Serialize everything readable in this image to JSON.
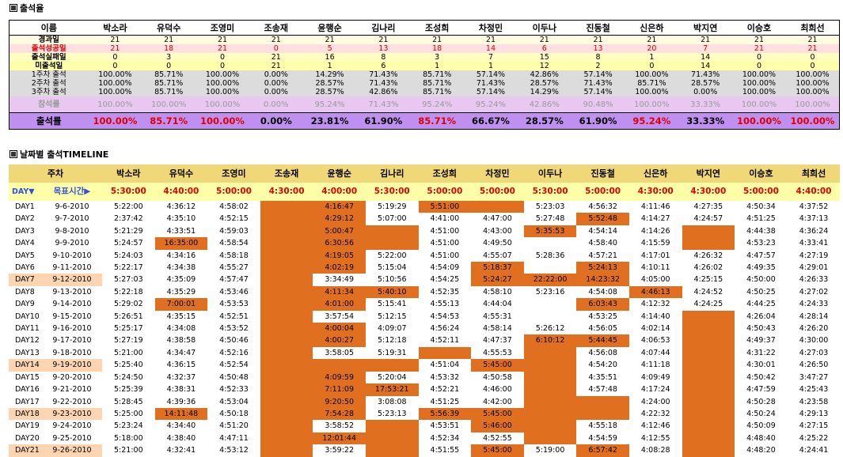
{
  "section1_title": "출석율",
  "section2_title": "날짜별 출석TIMELINE",
  "names": [
    "박소라",
    "유덕수",
    "조영미",
    "조송재",
    "윤행순",
    "김나리",
    "조성희",
    "차정민",
    "이두나",
    "진동철",
    "신은하",
    "박지연",
    "이승호",
    "최희선"
  ],
  "summary": {
    "name_header": "이름",
    "rows": [
      {
        "label": "경과일",
        "cls": "r-elapsed",
        "values": [
          "21",
          "21",
          "21",
          "21",
          "21",
          "21",
          "21",
          "21",
          "21",
          "21",
          "21",
          "21",
          "21",
          "21"
        ]
      },
      {
        "label": "출석성공일",
        "cls": "r-success",
        "values": [
          "21",
          "18",
          "21",
          "0",
          "5",
          "13",
          "18",
          "14",
          "6",
          "13",
          "20",
          "7",
          "21",
          "21"
        ]
      },
      {
        "label": "출석실패일",
        "cls": "r-fail",
        "values": [
          "0",
          "3",
          "0",
          "21",
          "16",
          "8",
          "3",
          "7",
          "15",
          "8",
          "1",
          "14",
          "0",
          "0"
        ]
      },
      {
        "label": "미출석일",
        "cls": "r-none",
        "values": [
          "0",
          "0",
          "0",
          "21",
          "1",
          "6",
          "1",
          "1",
          "12",
          "2",
          "0",
          "14",
          "0",
          "0"
        ]
      },
      {
        "label": "1주차 출석",
        "cls": "r-week",
        "values": [
          "100.00%",
          "85.71%",
          "100.00%",
          "0.00%",
          "14.29%",
          "71.43%",
          "85.71%",
          "57.14%",
          "42.86%",
          "57.14%",
          "100.00%",
          "71.43%",
          "100.00%",
          "100.00%"
        ]
      },
      {
        "label": "2주차 출석",
        "cls": "r-week",
        "values": [
          "100.00%",
          "85.71%",
          "100.00%",
          "0.00%",
          "28.57%",
          "71.43%",
          "85.71%",
          "71.43%",
          "28.57%",
          "71.43%",
          "85.71%",
          "28.57%",
          "100.00%",
          "100.00%"
        ]
      },
      {
        "label": "3주차 출석",
        "cls": "r-week",
        "values": [
          "100.00%",
          "85.71%",
          "100.00%",
          "0.00%",
          "28.57%",
          "42.86%",
          "85.71%",
          "57.14%",
          "14.29%",
          "57.14%",
          "100.00%",
          "0.00%",
          "100.00%",
          "100.00%"
        ]
      },
      {
        "label": "참석률",
        "cls": "r-part",
        "values": [
          "100.00%",
          "100.00%",
          "100.00%",
          "0.00%",
          "95.24%",
          "71.43%",
          "95.24%",
          "95.24%",
          "42.86%",
          "90.48%",
          "100.00%",
          "33.33%",
          "100.00%",
          "100.00%"
        ]
      }
    ],
    "rate": {
      "label": "출석률",
      "values": [
        "100.00%",
        "85.71%",
        "100.00%",
        "0.00%",
        "23.81%",
        "61.90%",
        "85.71%",
        "66.67%",
        "28.57%",
        "61.90%",
        "95.24%",
        "33.33%",
        "100.00%",
        "100.00%"
      ],
      "red": [
        true,
        true,
        true,
        false,
        false,
        false,
        true,
        false,
        false,
        false,
        true,
        false,
        true,
        true
      ]
    }
  },
  "timeline": {
    "week_header": "주차",
    "day_header": "DAY▼",
    "goal_header": "목표시간▶",
    "goal_times": [
      "5:30:00",
      "4:40:00",
      "5:00:00",
      "4:30:00",
      "4:00:00",
      "5:30:00",
      "5:00:00",
      "5:00:00",
      "5:30:00",
      "5:00:00",
      "4:30:00",
      "4:30:00",
      "5:00:00",
      "4:40:00"
    ],
    "days": [
      {
        "day": "DAY1",
        "date": "9-6-2010",
        "hl": false,
        "t": [
          "5:22:00",
          "4:36:12",
          "4:58:02",
          "",
          "4:16:47",
          "5:19:29",
          "5:51:00",
          "",
          "5:23:03",
          "4:56:32",
          "4:11:46",
          "4:27:35",
          "4:50:34",
          "4:37:52"
        ],
        "late": [
          3,
          4,
          6,
          7
        ]
      },
      {
        "day": "DAY2",
        "date": "9-7-2010",
        "hl": false,
        "t": [
          "2:37:42",
          "4:35:10",
          "4:52:15",
          "",
          "4:29:12",
          "5:07:00",
          "4:41:00",
          "4:47:00",
          "5:27:48",
          "5:52:48",
          "4:14:27",
          "4:24:57",
          "4:51:25",
          "4:37:13"
        ],
        "late": [
          3,
          4,
          9
        ]
      },
      {
        "day": "DAY3",
        "date": "9-8-2010",
        "hl": false,
        "t": [
          "5:21:29",
          "4:33:51",
          "4:59:03",
          "",
          "5:00:47",
          "",
          "4:51:00",
          "4:43:00",
          "5:35:53",
          "4:54:14",
          "4:14:26",
          "",
          "4:44:38",
          "4:36:24"
        ],
        "late": [
          3,
          4,
          5,
          8,
          11
        ]
      },
      {
        "day": "DAY4",
        "date": "9-9-2010",
        "hl": false,
        "t": [
          "5:24:57",
          "16:35:00",
          "4:58:54",
          "",
          "6:30:56",
          "",
          "4:51:00",
          "4:49:50",
          "",
          "4:58:40",
          "4:15:59",
          "",
          "4:53:23",
          "4:33:41"
        ],
        "late": [
          1,
          3,
          4,
          5,
          11
        ]
      },
      {
        "day": "DAY5",
        "date": "9-10-2010",
        "hl": false,
        "t": [
          "5:24:03",
          "4:34:16",
          "4:58:18",
          "",
          "4:19:05",
          "5:22:00",
          "4:51:00",
          "4:55:07",
          "5:28:36",
          "4:57:21",
          "4:17:01",
          "4:26:32",
          "4:47:57",
          "4:27:19"
        ],
        "late": [
          3,
          4
        ]
      },
      {
        "day": "DAY6",
        "date": "9-11-2010",
        "hl": false,
        "t": [
          "5:22:17",
          "4:34:38",
          "4:55:27",
          "",
          "4:02:19",
          "5:15:04",
          "4:54:09",
          "5:18:37",
          "",
          "5:24:13",
          "4:10:11",
          "4:26:02",
          "4:49:35",
          "4:29:01"
        ],
        "late": [
          3,
          4,
          7,
          9
        ]
      },
      {
        "day": "DAY7",
        "date": "9-12-2010",
        "hl": true,
        "t": [
          "5:27:03",
          "4:35:09",
          "4:57:47",
          "",
          "3:34:49",
          "5:10:56",
          "4:54:25",
          "5:24:27",
          "22:22:00",
          "14:23:32",
          "4:05:00",
          "4:25:15",
          "4:50:00",
          "4:26:33"
        ],
        "late": [
          3,
          7,
          8,
          9
        ]
      },
      {
        "day": "DAY8",
        "date": "9-13-2010",
        "hl": false,
        "t": [
          "5:22:18",
          "4:35:29",
          "4:53:46",
          "",
          "4:11:34",
          "5:40:10",
          "4:52:35",
          "4:58:10",
          "5:23:16",
          "4:54:08",
          "4:46:13",
          "4:24:52",
          "4:50:25",
          "4:27:02"
        ],
        "late": [
          3,
          4,
          5,
          10
        ]
      },
      {
        "day": "DAY9",
        "date": "9-14-2010",
        "hl": false,
        "t": [
          "5:29:02",
          "7:00:01",
          "4:53:53",
          "",
          "4:01:00",
          "5:15:41",
          "4:55:13",
          "4:44:04",
          "",
          "6:03:43",
          "4:12:32",
          "4:24:25",
          "4:44:25",
          "4:24:33"
        ],
        "late": [
          1,
          3,
          4,
          9
        ]
      },
      {
        "day": "DAY10",
        "date": "9-15-2010",
        "hl": false,
        "t": [
          "5:26:51",
          "4:35:15",
          "4:52:51",
          "",
          "3:57:54",
          "5:12:15",
          "4:54:53",
          "4:55:31",
          "",
          "4:53:25",
          "4:14:40",
          "",
          "4:26:04",
          "4:28:14"
        ],
        "late": [
          3,
          11
        ]
      },
      {
        "day": "DAY11",
        "date": "9-16-2010",
        "hl": false,
        "t": [
          "5:25:17",
          "4:34:08",
          "4:53:52",
          "",
          "4:00:04",
          "4:09:07",
          "4:56:24",
          "4:58:14",
          "5:26:12",
          "4:56:05",
          "4:02:14",
          "",
          "4:50:43",
          "4:26:20"
        ],
        "late": [
          3,
          4,
          11
        ]
      },
      {
        "day": "DAY12",
        "date": "9-17-2010",
        "hl": false,
        "t": [
          "5:27:19",
          "4:38:58",
          "4:50:46",
          "",
          "4:00:27",
          "5:12:18",
          "4:52:11",
          "4:47:37",
          "6:10:12",
          "5:44:45",
          "4:06:53",
          "",
          "4:49:37",
          "4:30:00"
        ],
        "late": [
          3,
          4,
          8,
          9,
          11
        ]
      },
      {
        "day": "DAY13",
        "date": "9-18-2010",
        "hl": false,
        "t": [
          "5:21:00",
          "4:34:47",
          "4:52:16",
          "",
          "3:58:05",
          "5:19:31",
          "",
          "4:55:53",
          "",
          "4:56:08",
          "4:07:44",
          "",
          "4:31:22",
          "4:27:03"
        ],
        "late": [
          3,
          6,
          8,
          11
        ]
      },
      {
        "day": "DAY14",
        "date": "9-19-2010",
        "hl": true,
        "t": [
          "5:25:40",
          "4:36:15",
          "4:52:54",
          "",
          "",
          "",
          "4:51:04",
          "5:45:00",
          "",
          "4:54:20",
          "4:11:18",
          "",
          "4:30:01",
          "4:26:50"
        ],
        "late": [
          3,
          4,
          5,
          7,
          8,
          11
        ]
      },
      {
        "day": "DAY15",
        "date": "9-20-2010",
        "hl": false,
        "t": [
          "5:24:50",
          "4:32:37",
          "4:50:48",
          "",
          "4:09:59",
          "5:20:04",
          "4:53:32",
          "4:50:58",
          "",
          "4:35:51",
          "4:09:49",
          "",
          "4:50:42",
          "3:47:27"
        ],
        "late": [
          3,
          4,
          8,
          11
        ]
      },
      {
        "day": "DAY16",
        "date": "9-21-2010",
        "hl": false,
        "t": [
          "5:25:39",
          "4:38:31",
          "4:52:33",
          "",
          "7:11:09",
          "17:53:21",
          "4:52:21",
          "4:46:00",
          "",
          "4:57:48",
          "4:17:24",
          "",
          "4:47:59",
          "4:25:43"
        ],
        "late": [
          3,
          4,
          5,
          8,
          11
        ]
      },
      {
        "day": "DAY17",
        "date": "9-22-2010",
        "hl": false,
        "t": [
          "5:28:45",
          "4:39:36",
          "4:53:04",
          "",
          "9:20:50",
          "3:08:08",
          "4:51:25",
          "4:42:00",
          "",
          "",
          "4:24:00",
          "",
          "4:50:28",
          "4:23:58"
        ],
        "late": [
          3,
          4,
          8,
          9,
          11
        ]
      },
      {
        "day": "DAY18",
        "date": "9-23-2010",
        "hl": true,
        "t": [
          "5:25:00",
          "14:11:48",
          "4:50:18",
          "",
          "7:54:28",
          "5:23:13",
          "5:56:39",
          "5:45:00",
          "",
          "",
          "4:22:32",
          "",
          "4:50:24",
          "4:29:13"
        ],
        "late": [
          1,
          3,
          4,
          6,
          7,
          8,
          9,
          11
        ]
      },
      {
        "day": "DAY19",
        "date": "9-24-2010",
        "hl": false,
        "t": [
          "5:23:24",
          "4:34:40",
          "4:51:20",
          "",
          "3:58:52",
          "",
          "4:53:51",
          "5:46:00",
          "",
          "4:55:18",
          "4:12:46",
          "",
          "4:50:09",
          "4:27:15"
        ],
        "late": [
          3,
          5,
          7,
          8,
          11
        ]
      },
      {
        "day": "DAY20",
        "date": "9-25-2010",
        "hl": false,
        "t": [
          "5:18:00",
          "4:38:40",
          "4:47:11",
          "",
          "12:01:44",
          "",
          "4:52:34",
          "4:52:55",
          "",
          "4:54:59",
          "4:12:55",
          "",
          "4:48:40",
          "4:25:22"
        ],
        "late": [
          3,
          4,
          5,
          8,
          11
        ]
      },
      {
        "day": "DAY21",
        "date": "9-26-2010",
        "hl": true,
        "t": [
          "5:21:00",
          "4:32:41",
          "4:53:12",
          "",
          "3:59:22",
          "",
          "4:51:55",
          "5:45:00",
          "5:19:00",
          "6:57:42",
          "4:08:28",
          "",
          "4:48:20",
          "4:24:41"
        ],
        "late": [
          3,
          5,
          7,
          9,
          11
        ]
      }
    ]
  },
  "colors": {
    "late": "#e07020",
    "header_gold": "#f0d878",
    "goal_yellow": "#ffffa8",
    "rate_purple": "#c090f0",
    "participation_lilac": "#e8c8f0",
    "red_text": "#e00000",
    "blue_text": "#3050e0"
  }
}
